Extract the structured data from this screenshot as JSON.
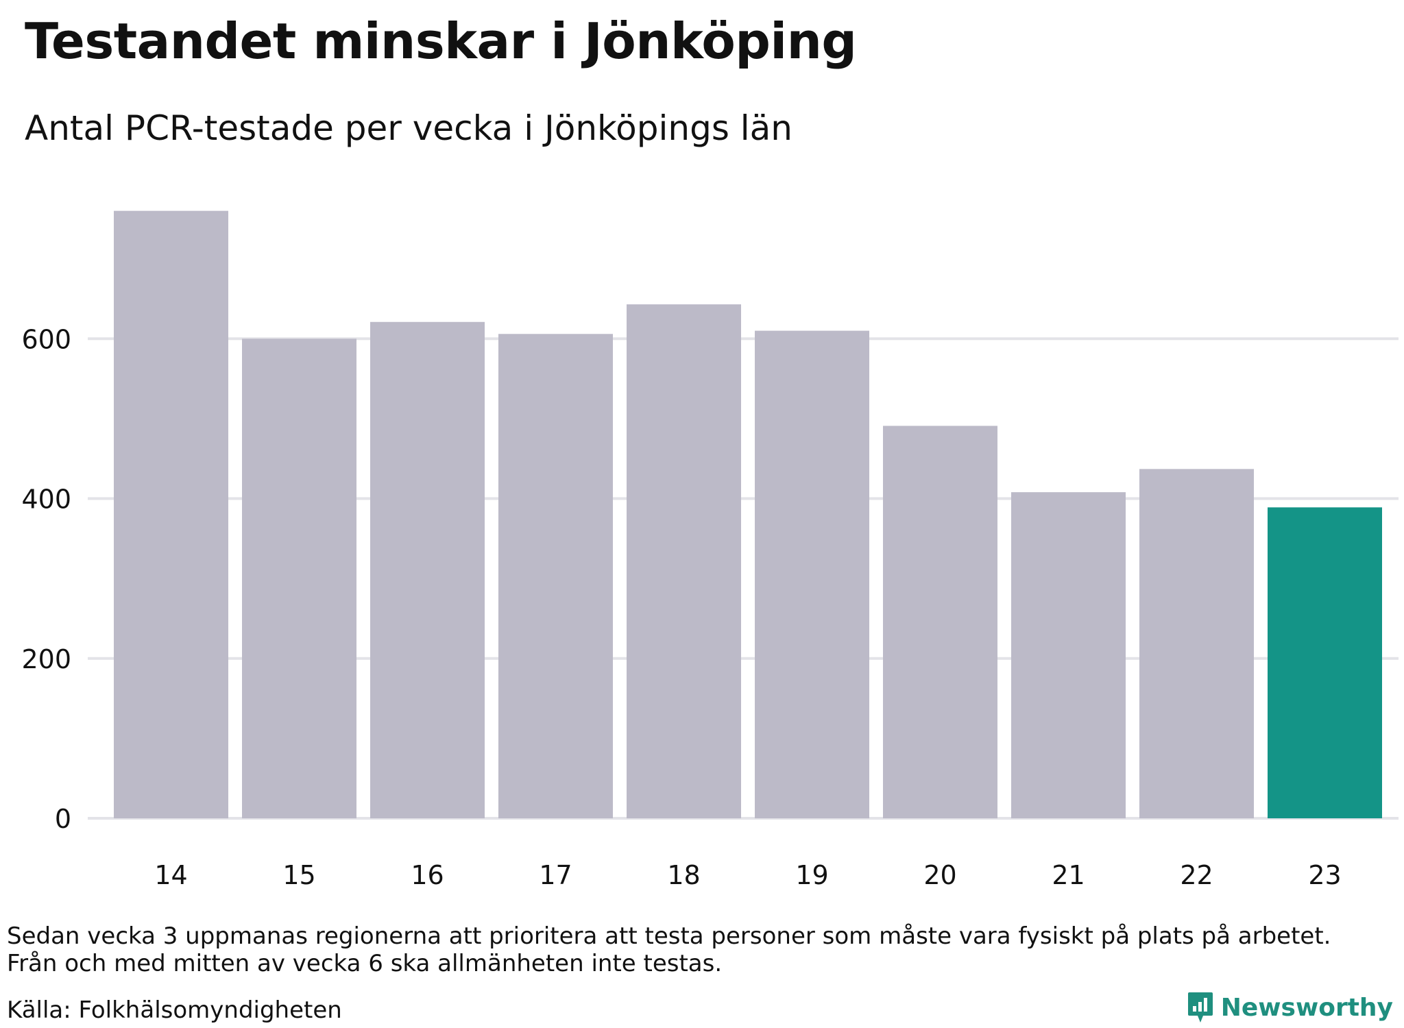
{
  "header": {
    "title": "Testandet minskar i Jönköping",
    "subtitle": "Antal PCR-testade per vecka i Jönköpings län"
  },
  "footer": {
    "note_line1": "Sedan vecka 3 uppmanas regionerna att prioritera att testa personer som måste vara fysiskt på plats på arbetet.",
    "note_line2": "Från och med mitten av vecka 6 ska allmänheten inte testas.",
    "source": "Källa: Folkhälsomyndigheten",
    "brand": "Newsworthy"
  },
  "colors": {
    "bar_default": "#bcbac8",
    "bar_highlight": "#149487",
    "gridline": "#e3e3e8",
    "brand": "#1f8f7f"
  },
  "chart_data": {
    "type": "bar",
    "categories": [
      "14",
      "15",
      "16",
      "17",
      "18",
      "19",
      "20",
      "21",
      "22",
      "23"
    ],
    "values": [
      760,
      600,
      621,
      606,
      643,
      610,
      491,
      408,
      437,
      389
    ],
    "highlight_index": 9,
    "ylim": [
      0,
      800
    ],
    "yticks": [
      0,
      200,
      400,
      600
    ],
    "grid": true,
    "xlabel": "",
    "ylabel": ""
  }
}
